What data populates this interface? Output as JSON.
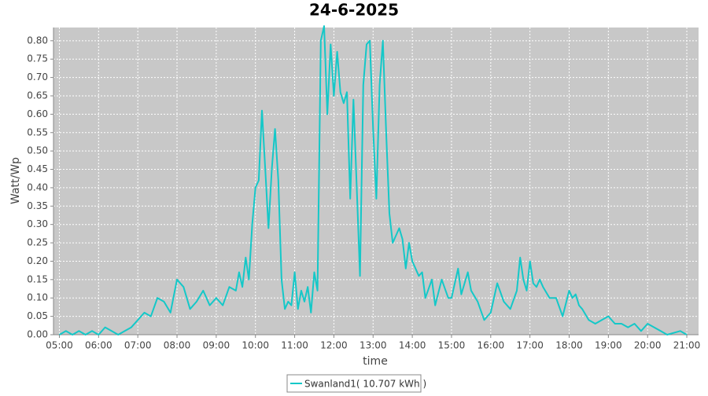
{
  "chart_data": {
    "type": "line",
    "title": "24-6-2025",
    "xlabel": "time",
    "ylabel": "Watt/Wp",
    "x": [
      "05:00",
      "05:10",
      "05:20",
      "05:30",
      "05:40",
      "05:50",
      "06:00",
      "06:10",
      "06:20",
      "06:30",
      "06:40",
      "06:50",
      "07:00",
      "07:10",
      "07:20",
      "07:30",
      "07:40",
      "07:50",
      "08:00",
      "08:10",
      "08:20",
      "08:30",
      "08:40",
      "08:50",
      "09:00",
      "09:10",
      "09:20",
      "09:30",
      "09:35",
      "09:40",
      "09:45",
      "09:50",
      "09:55",
      "10:00",
      "10:05",
      "10:10",
      "10:15",
      "10:20",
      "10:25",
      "10:30",
      "10:35",
      "10:40",
      "10:45",
      "10:50",
      "10:55",
      "11:00",
      "11:05",
      "11:10",
      "11:15",
      "11:20",
      "11:25",
      "11:30",
      "11:35",
      "11:40",
      "11:45",
      "11:50",
      "11:55",
      "12:00",
      "12:05",
      "12:10",
      "12:15",
      "12:20",
      "12:25",
      "12:30",
      "12:35",
      "12:40",
      "12:45",
      "12:50",
      "12:55",
      "13:00",
      "13:05",
      "13:10",
      "13:15",
      "13:20",
      "13:25",
      "13:30",
      "13:40",
      "13:45",
      "13:50",
      "13:55",
      "14:00",
      "14:10",
      "14:15",
      "14:20",
      "14:30",
      "14:35",
      "14:45",
      "14:55",
      "15:00",
      "15:10",
      "15:15",
      "15:25",
      "15:30",
      "15:40",
      "15:50",
      "16:00",
      "16:10",
      "16:20",
      "16:30",
      "16:40",
      "16:45",
      "16:50",
      "16:55",
      "17:00",
      "17:05",
      "17:10",
      "17:15",
      "17:20",
      "17:30",
      "17:40",
      "17:50",
      "18:00",
      "18:05",
      "18:10",
      "18:15",
      "18:20",
      "18:30",
      "18:40",
      "18:50",
      "19:00",
      "19:10",
      "19:20",
      "19:30",
      "19:40",
      "19:50",
      "20:00",
      "20:10",
      "20:20",
      "20:30",
      "20:50",
      "21:00"
    ],
    "series": [
      {
        "name": "Swanland1( 10.707 kWh )",
        "color": "#14c8c8",
        "values": [
          0,
          0.01,
          0,
          0.01,
          0,
          0.01,
          0,
          0.02,
          0.01,
          0,
          0.01,
          0.02,
          0.04,
          0.06,
          0.05,
          0.1,
          0.09,
          0.06,
          0.15,
          0.13,
          0.07,
          0.09,
          0.12,
          0.08,
          0.1,
          0.08,
          0.13,
          0.12,
          0.17,
          0.13,
          0.21,
          0.15,
          0.3,
          0.4,
          0.42,
          0.61,
          0.45,
          0.29,
          0.45,
          0.56,
          0.42,
          0.15,
          0.07,
          0.09,
          0.08,
          0.17,
          0.07,
          0.12,
          0.09,
          0.13,
          0.06,
          0.17,
          0.12,
          0.8,
          0.84,
          0.6,
          0.79,
          0.65,
          0.77,
          0.66,
          0.63,
          0.66,
          0.37,
          0.64,
          0.4,
          0.16,
          0.68,
          0.79,
          0.8,
          0.56,
          0.37,
          0.68,
          0.8,
          0.55,
          0.33,
          0.25,
          0.29,
          0.26,
          0.18,
          0.25,
          0.2,
          0.16,
          0.17,
          0.1,
          0.15,
          0.08,
          0.15,
          0.1,
          0.1,
          0.18,
          0.11,
          0.17,
          0.12,
          0.09,
          0.04,
          0.06,
          0.14,
          0.09,
          0.07,
          0.12,
          0.21,
          0.15,
          0.12,
          0.2,
          0.14,
          0.13,
          0.15,
          0.13,
          0.1,
          0.1,
          0.05,
          0.12,
          0.1,
          0.11,
          0.08,
          0.07,
          0.04,
          0.03,
          0.04,
          0.05,
          0.03,
          0.03,
          0.02,
          0.03,
          0.01,
          0.03,
          0.02,
          0.01,
          0,
          0.01,
          0
        ]
      }
    ],
    "xlim": [
      "04:51",
      "21:18"
    ],
    "xticks": [
      "05:00",
      "06:00",
      "07:00",
      "08:00",
      "09:00",
      "10:00",
      "11:00",
      "12:00",
      "13:00",
      "14:00",
      "15:00",
      "16:00",
      "17:00",
      "18:00",
      "19:00",
      "20:00",
      "21:00"
    ],
    "ylim": [
      0,
      0.836
    ],
    "yticks": [
      {
        "value": 0,
        "label": "0.00"
      },
      {
        "value": 0.05,
        "label": "0.05"
      },
      {
        "value": 0.1,
        "label": "0.10"
      },
      {
        "value": 0.15,
        "label": "0.15"
      },
      {
        "value": 0.2,
        "label": "0.20"
      },
      {
        "value": 0.25,
        "label": "0.25"
      },
      {
        "value": 0.3,
        "label": "0.30"
      },
      {
        "value": 0.35,
        "label": "0.35"
      },
      {
        "value": 0.4,
        "label": "0.40"
      },
      {
        "value": 0.45,
        "label": "0.45"
      },
      {
        "value": 0.5,
        "label": "0.50"
      },
      {
        "value": 0.55,
        "label": "0.55"
      },
      {
        "value": 0.6,
        "label": "0.60"
      },
      {
        "value": 0.65,
        "label": "0.65"
      },
      {
        "value": 0.7,
        "label": "0.70"
      },
      {
        "value": 0.75,
        "label": "0.75"
      },
      {
        "value": 0.8,
        "label": "0.80"
      }
    ],
    "grid": true,
    "plot_background": "#c8c8c8"
  }
}
